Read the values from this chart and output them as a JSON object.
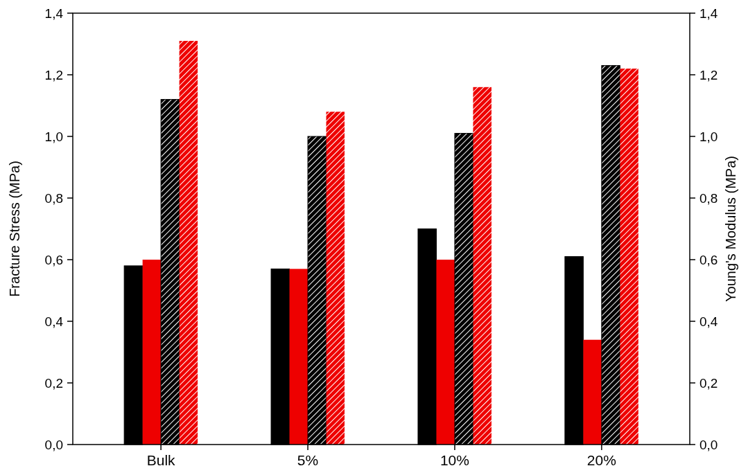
{
  "chart_data": {
    "type": "bar",
    "ylabel": "Fracture Stress (MPa)",
    "y2label": "Young's Modulus (MPa)",
    "categories": [
      "Bulk",
      "5%",
      "10%",
      "20%"
    ],
    "series": [
      {
        "color": "#000000",
        "values": [
          0.58,
          0.57,
          0.7,
          0.61
        ]
      },
      {
        "color": "#ee0000",
        "values": [
          0.6,
          0.57,
          0.6,
          0.34
        ]
      },
      {
        "color": "#000000",
        "axis": "y2",
        "values": [
          1.12,
          1.0,
          1.01,
          1.23
        ]
      },
      {
        "color": "#ee0000",
        "axis": "y2",
        "values": [
          1.31,
          1.08,
          1.16,
          1.22
        ]
      }
    ],
    "ylim": [
      0,
      1.4
    ],
    "yticks": [
      {
        "value": 0,
        "label": "0,0"
      },
      {
        "value": 0.2,
        "label": "0,2"
      },
      {
        "value": 0.4,
        "label": "0,4"
      },
      {
        "value": 0.6,
        "label": "0,6"
      },
      {
        "value": 0.8,
        "label": "0,8"
      },
      {
        "value": 1.0,
        "label": "1,0"
      },
      {
        "value": 1.2,
        "label": "1,2"
      },
      {
        "value": 1.4,
        "label": "1,4"
      }
    ],
    "y2lim": [
      0,
      1.4
    ],
    "y2ticks": [
      {
        "value": 0,
        "label": "0,0"
      },
      {
        "value": 0.2,
        "label": "0,2"
      },
      {
        "value": 0.4,
        "label": "0,4"
      },
      {
        "value": 0.6,
        "label": "0,6"
      },
      {
        "value": 0.8,
        "label": "0,8"
      },
      {
        "value": 1.0,
        "label": "1,0"
      },
      {
        "value": 1.2,
        "label": "1,2"
      },
      {
        "value": 1.4,
        "label": "1,4"
      }
    ]
  }
}
